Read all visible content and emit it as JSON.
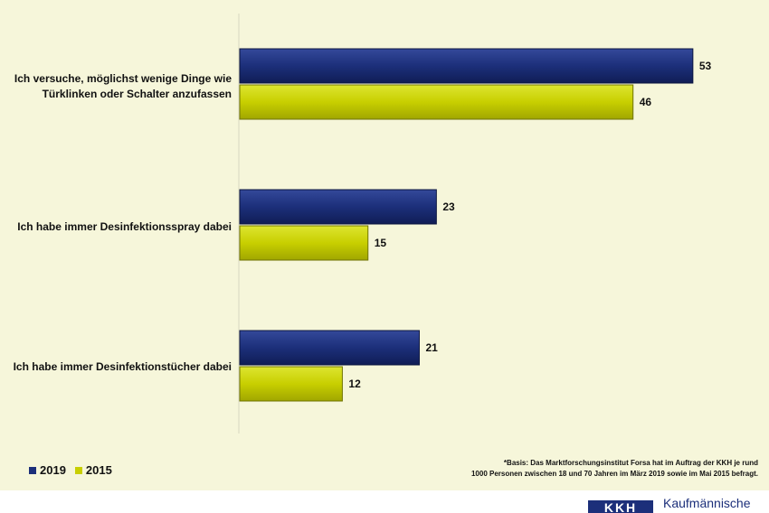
{
  "chart_data": {
    "type": "bar",
    "orientation": "horizontal",
    "categories": [
      "Ich versuche, möglichst wenige Dinge wie Türklinken oder Schalter anzufassen",
      "Ich habe immer Desinfektionsspray dabei",
      "Ich habe immer Desinfektionstücher dabei"
    ],
    "series": [
      {
        "name": "2019",
        "values": [
          53,
          23,
          21
        ],
        "color": "#1c2f7a"
      },
      {
        "name": "2015",
        "values": [
          46,
          15,
          12
        ],
        "color": "#c8cf00"
      }
    ],
    "xlim": [
      0,
      57
    ],
    "data_labels": true,
    "legend_position": "bottom-left"
  },
  "labels": {
    "cat0_line1": "Ich versuche, möglichst wenige Dinge wie",
    "cat0_line2": "Türklinken oder Schalter anzufassen",
    "cat1": "Ich habe immer Desinfektionsspray dabei",
    "cat2": "Ich habe immer Desinfektionstücher dabei"
  },
  "legend": {
    "items": [
      {
        "label": "2019",
        "color": "#1c2f7a"
      },
      {
        "label": "2015",
        "color": "#c8cf00"
      }
    ]
  },
  "footnote": {
    "line1": "*Basis: Das Marktforschungsinstitut Forsa hat im Auftrag der KKH je rund",
    "line2": "1000 Personen zwischen 18 und 70 Jahren im März 2019 sowie im Mai 2015 befragt."
  },
  "brand": {
    "logo": "KKH",
    "text": "Kaufmännische"
  },
  "colors": {
    "background": "#f6f6da",
    "series_2019": "#1c2f7a",
    "series_2015": "#c8cf00"
  }
}
